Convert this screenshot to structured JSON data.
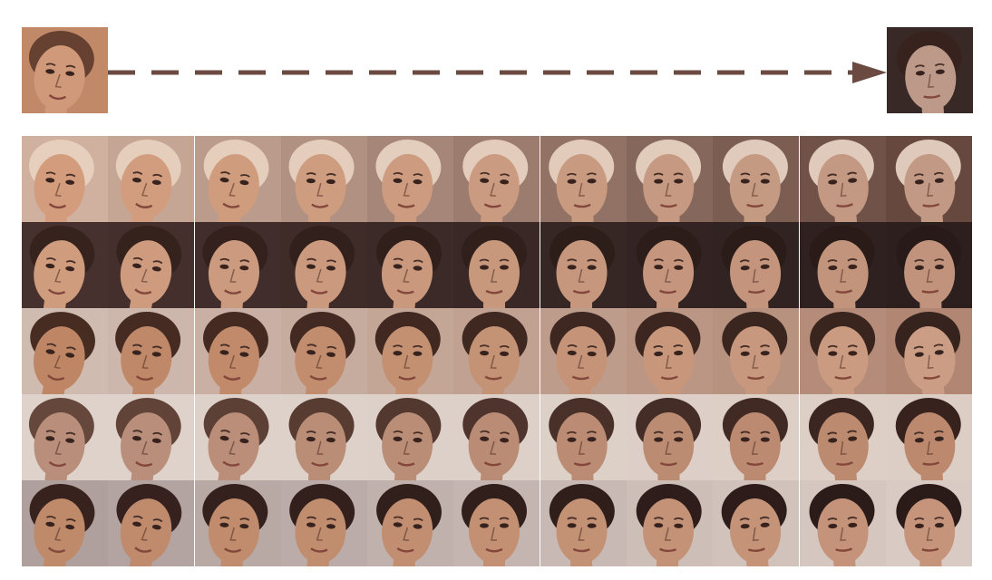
{
  "figure": {
    "source_face": {
      "skin": "#d9a07e",
      "hair": "#6b4433",
      "bg": "#c98f6c"
    },
    "target_face": {
      "skin": "#c4a08f",
      "hair": "#3a2420",
      "bg": "#3b2a28"
    },
    "arrow_color": "#6b4a42",
    "rows": [
      {
        "start": {
          "skin": "#dca483",
          "hair": "#f0d8c4",
          "bg": "#d9b8a6"
        },
        "end": {
          "skin": "#caa08a",
          "hair": "#e9d2c3",
          "bg": "#6b4b42"
        }
      },
      {
        "start": {
          "skin": "#d8a384",
          "hair": "#3a2520",
          "bg": "#4a3330"
        },
        "end": {
          "skin": "#c99a82",
          "hair": "#2a1c1a",
          "bg": "#2e2120"
        }
      },
      {
        "start": {
          "skin": "#c68c6a",
          "hair": "#4a2e24",
          "bg": "#d9c3b8"
        },
        "end": {
          "skin": "#d4a48a",
          "hair": "#3a2520",
          "bg": "#b98d78"
        }
      },
      {
        "start": {
          "skin": "#c19580",
          "hair": "#6a4a3e",
          "bg": "#e8dbd3"
        },
        "end": {
          "skin": "#c48f73",
          "hair": "#3a2420",
          "bg": "#e6d7ce"
        }
      },
      {
        "start": {
          "skin": "#c6906f",
          "hair": "#3a2420",
          "bg": "#b7a7a4"
        },
        "end": {
          "skin": "#cf9b80",
          "hair": "#2c1d1b",
          "bg": "#e3d3cc"
        }
      }
    ],
    "steps": 11
  }
}
